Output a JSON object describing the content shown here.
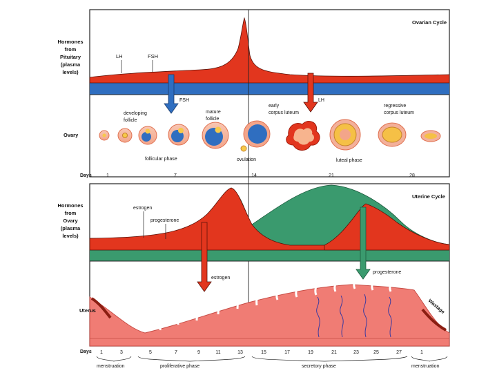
{
  "ovarian": {
    "title": "Ovarian Cycle",
    "row_label": [
      "Hormones",
      "from",
      "Pituitary",
      "(plasma",
      "levels)"
    ],
    "lh": "LH",
    "fsh": "FSH",
    "arrow_fsh": "FSH",
    "arrow_lh": "LH",
    "ovary_label": "Ovary",
    "developing": [
      "developing",
      "follicle"
    ],
    "mature": [
      "mature",
      "follicle"
    ],
    "early_cl": [
      "early",
      "corpus luteum"
    ],
    "regressive_cl": [
      "regressive",
      "corpus luteum"
    ],
    "follicular_phase": "follicular phase",
    "ovulation": "ovulation",
    "luteal_phase": "luteal phase",
    "days_label": "Days",
    "days": [
      "1",
      "7",
      "14",
      "21",
      "28"
    ]
  },
  "uterine": {
    "title": "Uterine Cycle",
    "row_label": [
      "Hormones",
      "from",
      "Ovary",
      "(plasma",
      "levels)"
    ],
    "estrogen": "estrogen",
    "progesterone": "progesterone",
    "arrow_estrogen": "estrogen",
    "arrow_progesterone": "progesterone",
    "uterus_label": "Uterus",
    "wastage": "Wastage",
    "days_label": "Days",
    "days": [
      "1",
      "3",
      "5",
      "7",
      "9",
      "11",
      "13",
      "15",
      "17",
      "19",
      "21",
      "23",
      "25",
      "27",
      "1"
    ],
    "menstruation": "menstruation",
    "proliferative_phase": "proliferative phase",
    "secretory_phase": "secretory phase",
    "menstruation_end": "menstruation"
  },
  "colors": {
    "red": "#e2361e",
    "blue": "#2f6ec0",
    "green": "#3a9a6e",
    "endometrium": "#f07c74",
    "arrow_red": "#e2361e",
    "arrow_blue": "#2f6ec0",
    "arrow_green": "#3a9a6e"
  }
}
